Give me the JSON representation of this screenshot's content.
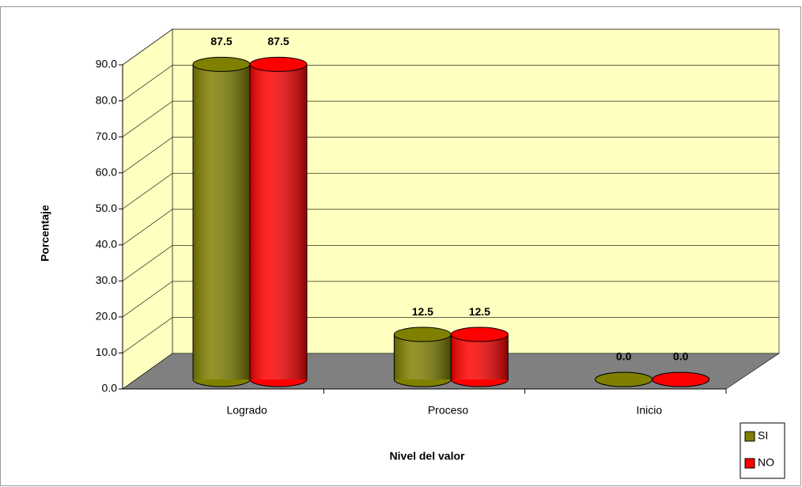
{
  "chart_data": {
    "type": "bar3d",
    "categories": [
      "Logrado",
      "Proceso",
      "Inicio"
    ],
    "series": [
      {
        "name": "SI",
        "color": "#808000",
        "values": [
          87.5,
          12.5,
          0
        ],
        "value_labels": [
          "87.5",
          "12.5",
          "0.0"
        ]
      },
      {
        "name": "NO",
        "color": "#ff0000",
        "values": [
          87.5,
          12.5,
          0
        ],
        "value_labels": [
          "87.5",
          "12.5",
          "0.0"
        ]
      }
    ],
    "ylim": [
      0,
      90
    ],
    "yticks": [
      {
        "value": 0,
        "label": "0.0"
      },
      {
        "value": 10,
        "label": "10.0"
      },
      {
        "value": 20,
        "label": "20.0"
      },
      {
        "value": 30,
        "label": "30.0"
      },
      {
        "value": 40,
        "label": "40.0"
      },
      {
        "value": 50,
        "label": "50.0"
      },
      {
        "value": 60,
        "label": "60.0"
      },
      {
        "value": 70,
        "label": "70.0"
      },
      {
        "value": 80,
        "label": "80.0"
      },
      {
        "value": 90,
        "label": "90.0"
      }
    ],
    "y_label": "Porcentaje",
    "x_label": "Nivel del valor",
    "grid": true,
    "legend": "lower right"
  }
}
